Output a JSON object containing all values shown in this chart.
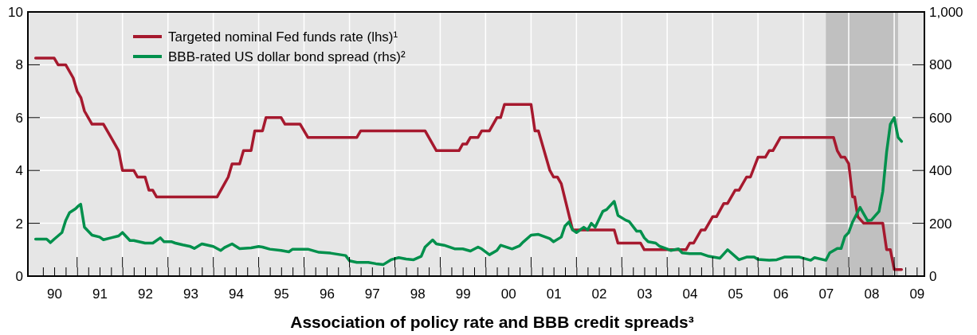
{
  "chart_data": {
    "type": "line",
    "title": "Association of policy rate and BBB credit spreads³",
    "xlim": [
      "1989-12",
      "2009-09"
    ],
    "ylim": [
      0,
      10
    ],
    "yticks": [
      0,
      2,
      4,
      6,
      8,
      10
    ],
    "y2lim": [
      0,
      1000
    ],
    "y2ticks": [
      0,
      200,
      400,
      600,
      800,
      {
        "value": 1000,
        "label": "1,000"
      }
    ],
    "xticks": [
      {
        "value": "1990-04",
        "label": null
      },
      {
        "value": "1990-07",
        "label": "90"
      },
      {
        "value": "1990-10",
        "label": null
      },
      {
        "value": "1991",
        "label": null
      },
      {
        "value": "1991-04",
        "label": null
      },
      {
        "value": "1991-07",
        "label": "91"
      },
      {
        "value": "1991-10",
        "label": null
      },
      {
        "value": "1992",
        "label": null
      },
      {
        "value": "1992-04",
        "label": null
      },
      {
        "value": "1992-07",
        "label": "92"
      },
      {
        "value": "1992-10",
        "label": null
      },
      {
        "value": "1993",
        "label": null
      },
      {
        "value": "1993-04",
        "label": null
      },
      {
        "value": "1993-07",
        "label": "93"
      },
      {
        "value": "1993-10",
        "label": null
      },
      {
        "value": "1994",
        "label": null
      },
      {
        "value": "1994-04",
        "label": null
      },
      {
        "value": "1994-07",
        "label": "94"
      },
      {
        "value": "1994-10",
        "label": null
      },
      {
        "value": "1995",
        "label": null
      },
      {
        "value": "1995-04",
        "label": null
      },
      {
        "value": "1995-07",
        "label": "95"
      },
      {
        "value": "1995-10",
        "label": null
      },
      {
        "value": "1996",
        "label": null
      },
      {
        "value": "1996-04",
        "label": null
      },
      {
        "value": "1996-07",
        "label": "96"
      },
      {
        "value": "1996-10",
        "label": null
      },
      {
        "value": "1997",
        "label": null
      },
      {
        "value": "1997-04",
        "label": null
      },
      {
        "value": "1997-07",
        "label": "97"
      },
      {
        "value": "1997-10",
        "label": null
      },
      {
        "value": "1998",
        "label": null
      },
      {
        "value": "1998-04",
        "label": null
      },
      {
        "value": "1998-07",
        "label": "98"
      },
      {
        "value": "1998-10",
        "label": null
      },
      {
        "value": "1999",
        "label": null
      },
      {
        "value": "1999-04",
        "label": null
      },
      {
        "value": "1999-07",
        "label": "99"
      },
      {
        "value": "1999-10",
        "label": null
      },
      {
        "value": "2000",
        "label": null
      },
      {
        "value": "2000-04",
        "label": null
      },
      {
        "value": "2000-07",
        "label": "00"
      },
      {
        "value": "2000-10",
        "label": null
      },
      {
        "value": "2001",
        "label": null
      },
      {
        "value": "2001-04",
        "label": null
      },
      {
        "value": "2001-07",
        "label": "01"
      },
      {
        "value": "2001-10",
        "label": null
      },
      {
        "value": "2002",
        "label": null
      },
      {
        "value": "2002-04",
        "label": null
      },
      {
        "value": "2002-07",
        "label": "02"
      },
      {
        "value": "2002-10",
        "label": null
      },
      {
        "value": "2003",
        "label": null
      },
      {
        "value": "2003-04",
        "label": null
      },
      {
        "value": "2003-07",
        "label": "03"
      },
      {
        "value": "2003-10",
        "label": null
      },
      {
        "value": "2004",
        "label": null
      },
      {
        "value": "2004-04",
        "label": null
      },
      {
        "value": "2004-07",
        "label": "04"
      },
      {
        "value": "2004-10",
        "label": null
      },
      {
        "value": "2005",
        "label": null
      },
      {
        "value": "2005-04",
        "label": null
      },
      {
        "value": "2005-07",
        "label": "05"
      },
      {
        "value": "2005-10",
        "label": null
      },
      {
        "value": "2006",
        "label": null
      },
      {
        "value": "2006-04",
        "label": null
      },
      {
        "value": "2006-07",
        "label": "06"
      },
      {
        "value": "2006-10",
        "label": null
      },
      {
        "value": "2007",
        "label": null
      },
      {
        "value": "2007-04",
        "label": null
      },
      {
        "value": "2007-07",
        "label": "07"
      },
      {
        "value": "2007-10",
        "label": null
      },
      {
        "value": "2008",
        "label": null
      },
      {
        "value": "2008-04",
        "label": null
      },
      {
        "value": "2008-07",
        "label": "08"
      },
      {
        "value": "2008-10",
        "label": null
      },
      {
        "value": "2009",
        "label": null
      },
      {
        "value": "2009-04",
        "label": null
      },
      {
        "value": "2009-07",
        "label": "09"
      }
    ],
    "grid": true,
    "legend": "top left",
    "line_style": "solid",
    "bands": [
      {
        "axis": "x",
        "from": "2007-07",
        "to": "2009-02",
        "color": "#c0c0c0"
      }
    ],
    "series": [
      {
        "name": "Targeted nominal Fed funds rate (lhs)¹",
        "color": "#a6192e",
        "x": [
          "1990-02",
          "1990-07",
          "1990-08",
          "1990-10",
          "1990-12",
          "1991-01",
          "1991-02",
          "1991-03",
          "1991-05",
          "1991-08",
          "1991-10",
          "1991-12",
          "1992-01",
          "1992-04",
          "1992-05",
          "1992-07",
          "1992-08",
          "1992-09",
          "1992-10",
          "1994-02",
          "1994-04",
          "1994-05",
          "1994-06",
          "1994-08",
          "1994-09",
          "1994-11",
          "1994-12",
          "1995-02",
          "1995-03",
          "1995-07",
          "1995-08",
          "1995-12",
          "1996-02",
          "1997-03",
          "1997-04",
          "1998-09",
          "1998-12",
          "1999-06",
          "1999-07",
          "1999-08",
          "1999-09",
          "1999-11",
          "1999-12",
          "2000-02",
          "2000-04",
          "2000-05",
          "2000-06",
          "2001-01",
          "2001-02",
          "2001-03",
          "2001-06",
          "2001-07",
          "2001-08",
          "2001-09",
          "2001-12",
          "2002-11",
          "2002-12",
          "2003-06",
          "2003-07",
          "2004-06",
          "2004-07",
          "2004-08",
          "2004-10",
          "2004-11",
          "2005-01",
          "2005-02",
          "2005-04",
          "2005-05",
          "2005-07",
          "2005-08",
          "2005-10",
          "2005-11",
          "2006-01",
          "2006-03",
          "2006-04",
          "2006-05",
          "2006-07",
          "2007-09",
          "2007-10",
          "2007-11",
          "2007-12",
          "2008-01",
          "2008-02",
          "2008-02-18",
          "2008-03-14",
          "2008-05",
          "2008-10",
          "2008-11",
          "2008-12",
          "2009-01",
          "2009-03"
        ],
        "values": [
          8.25,
          8.25,
          8.0,
          8.0,
          7.5,
          7.0,
          6.75,
          6.25,
          5.75,
          5.75,
          5.25,
          4.75,
          4.0,
          4.0,
          3.75,
          3.75,
          3.25,
          3.25,
          3.0,
          3.0,
          3.5,
          3.75,
          4.25,
          4.25,
          4.75,
          4.75,
          5.5,
          5.5,
          6.0,
          6.0,
          5.75,
          5.75,
          5.25,
          5.25,
          5.5,
          5.5,
          4.75,
          4.75,
          5.0,
          5.0,
          5.25,
          5.25,
          5.5,
          5.5,
          6.0,
          6.0,
          6.5,
          6.5,
          5.5,
          5.5,
          4.0,
          3.75,
          3.75,
          3.5,
          1.75,
          1.75,
          1.25,
          1.25,
          1.0,
          1.0,
          1.25,
          1.25,
          1.75,
          1.75,
          2.25,
          2.25,
          2.75,
          2.75,
          3.25,
          3.25,
          3.75,
          3.75,
          4.5,
          4.5,
          4.75,
          4.75,
          5.25,
          5.25,
          4.75,
          4.5,
          4.5,
          4.25,
          3.0,
          3.0,
          2.25,
          2.0,
          2.0,
          1.0,
          1.0,
          0.25,
          0.25
        ]
      },
      {
        "name": "BBB-rated US dollar bond spread (rhs)²",
        "color": "#00904c",
        "axis": "y2",
        "x": [
          "1990-02",
          "1990-05",
          "1990-06",
          "1990-07",
          "1990-09",
          "1990-10",
          "1990-11",
          "1990-12-20",
          "1991-01-10",
          "1991-01-30",
          "1991-03",
          "1991-05",
          "1991-07",
          "1991-08",
          "1991-10",
          "1991-12",
          "1992-01",
          "1992-03",
          "1992-04",
          "1992-07",
          "1992-09",
          "1992-11",
          "1992-12",
          "1993-02",
          "1993-03",
          "1993-05",
          "1993-07",
          "1993-08",
          "1993-10",
          "1994-01",
          "1994-03",
          "1994-04",
          "1994-06",
          "1994-08",
          "1994-11",
          "1995-01",
          "1995-02",
          "1995-04",
          "1995-07",
          "1995-09",
          "1995-10",
          "1996-02",
          "1996-05",
          "1996-08",
          "1996-12",
          "1997-01",
          "1997-03",
          "1997-06",
          "1997-08",
          "1997-10",
          "1997-12",
          "1998-02",
          "1998-04",
          "1998-06",
          "1998-08",
          "1998-09",
          "1998-11",
          "1998-12",
          "1999-02",
          "1999-05",
          "1999-07",
          "1999-09",
          "1999-11",
          "1999-12",
          "2000-02",
          "2000-04",
          "2000-05",
          "2000-08",
          "2000-10",
          "2000-11",
          "2001-01",
          "2001-03",
          "2001-06",
          "2001-07",
          "2001-09",
          "2001-10",
          "2001-11",
          "2001-12",
          "2002-01",
          "2002-03",
          "2002-04",
          "2002-05",
          "2002-06",
          "2002-08",
          "2002-09",
          "2002-11",
          "2002-12",
          "2003-02",
          "2003-03",
          "2003-05",
          "2003-06",
          "2003-07",
          "2003-08",
          "2003-10",
          "2003-11",
          "2004-01",
          "2004-02",
          "2004-04",
          "2004-05",
          "2004-07",
          "2004-10",
          "2004-12",
          "2005-03",
          "2005-05",
          "2005-08",
          "2005-10",
          "2005-12",
          "2006-01",
          "2006-04",
          "2006-06",
          "2006-08",
          "2006-12",
          "2007-03",
          "2007-04",
          "2007-07",
          "2007-08",
          "2007-10",
          "2007-11",
          "2007-12",
          "2008-01",
          "2008-02",
          "2008-04",
          "2008-06",
          "2008-07",
          "2008-09",
          "2008-10",
          "2008-11",
          "2008-12",
          "2009-01",
          "2009-02",
          "2009-03"
        ],
        "values": [
          140,
          140,
          127,
          140,
          165,
          210,
          240,
          255,
          265,
          272,
          185,
          155,
          148,
          138,
          145,
          152,
          165,
          135,
          135,
          125,
          125,
          145,
          130,
          130,
          125,
          118,
          112,
          105,
          122,
          112,
          97,
          108,
          122,
          104,
          107,
          112,
          110,
          102,
          97,
          92,
          102,
          102,
          90,
          87,
          78,
          58,
          52,
          52,
          47,
          44,
          62,
          70,
          65,
          62,
          75,
          110,
          137,
          122,
          117,
          103,
          103,
          95,
          110,
          103,
          81,
          97,
          117,
          103,
          115,
          130,
          155,
          158,
          142,
          130,
          148,
          190,
          205,
          175,
          165,
          185,
          175,
          200,
          185,
          245,
          252,
          283,
          230,
          212,
          207,
          170,
          170,
          145,
          130,
          125,
          113,
          103,
          97,
          103,
          88,
          85,
          85,
          75,
          68,
          100,
          62,
          72,
          72,
          63,
          60,
          62,
          72,
          72,
          60,
          70,
          60,
          88,
          105,
          105,
          150,
          165,
          205,
          260,
          210,
          212,
          245,
          320,
          470,
          575,
          600,
          525,
          510
        ]
      }
    ]
  }
}
